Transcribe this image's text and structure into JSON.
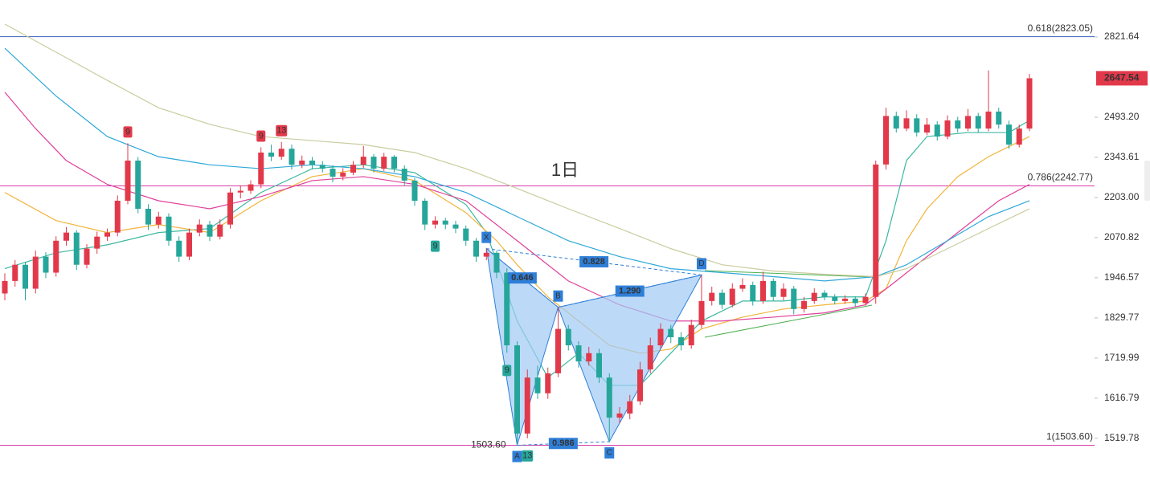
{
  "chart_data": {
    "type": "candlestick",
    "log_scale": true,
    "ylim": [
      1423,
      2987
    ],
    "yticks": [
      1519.78,
      1616.79,
      1719.99,
      1829.77,
      1946.57,
      2070.82,
      {
        "value": 2203,
        "label": "2203.00"
      },
      2343.61,
      {
        "value": 2493.2,
        "label": "2493.20"
      },
      2821.64
    ],
    "colors": {
      "up": "#e2394a",
      "down": "#26a69a"
    },
    "candles": [
      [
        1900,
        1960,
        1880,
        1937
      ],
      [
        1937,
        2000,
        1920,
        1986
      ],
      [
        1986,
        1995,
        1880,
        1914
      ],
      [
        1914,
        2030,
        1900,
        2011
      ],
      [
        2011,
        2025,
        1945,
        1962
      ],
      [
        1962,
        2075,
        1950,
        2061
      ],
      [
        2061,
        2105,
        2045,
        2087
      ],
      [
        2087,
        2095,
        1970,
        1986
      ],
      [
        1986,
        2050,
        1975,
        2036
      ],
      [
        2036,
        2090,
        2020,
        2074
      ],
      [
        2074,
        2100,
        2060,
        2087
      ],
      [
        2087,
        2210,
        2075,
        2192
      ],
      [
        2192,
        2395,
        2180,
        2332
      ],
      [
        2332,
        2345,
        2150,
        2165
      ],
      [
        2165,
        2180,
        2095,
        2113
      ],
      [
        2113,
        2155,
        2100,
        2139
      ],
      [
        2139,
        2150,
        2045,
        2061
      ],
      [
        2061,
        2075,
        1995,
        2011
      ],
      [
        2011,
        2100,
        2000,
        2087
      ],
      [
        2087,
        2130,
        2075,
        2113
      ],
      [
        2113,
        2125,
        2060,
        2074
      ],
      [
        2074,
        2130,
        2065,
        2113
      ],
      [
        2113,
        2235,
        2100,
        2220
      ],
      [
        2220,
        2245,
        2200,
        2226
      ],
      [
        2226,
        2262,
        2215,
        2248
      ],
      [
        2248,
        2380,
        2235,
        2361
      ],
      [
        2361,
        2390,
        2330,
        2346
      ],
      [
        2346,
        2400,
        2335,
        2375
      ],
      [
        2375,
        2390,
        2300,
        2317
      ],
      [
        2317,
        2350,
        2305,
        2332
      ],
      [
        2332,
        2345,
        2300,
        2317
      ],
      [
        2317,
        2330,
        2290,
        2303
      ],
      [
        2303,
        2315,
        2255,
        2275
      ],
      [
        2275,
        2305,
        2262,
        2289
      ],
      [
        2289,
        2330,
        2280,
        2317
      ],
      [
        2317,
        2385,
        2305,
        2346
      ],
      [
        2346,
        2355,
        2290,
        2303
      ],
      [
        2303,
        2360,
        2295,
        2346
      ],
      [
        2346,
        2352,
        2290,
        2303
      ],
      [
        2303,
        2315,
        2245,
        2261
      ],
      [
        2261,
        2270,
        2175,
        2192
      ],
      [
        2192,
        2200,
        2095,
        2113
      ],
      [
        2113,
        2140,
        2100,
        2126
      ],
      [
        2126,
        2135,
        2098,
        2113
      ],
      [
        2113,
        2125,
        2085,
        2100
      ],
      [
        2100,
        2110,
        2045,
        2061
      ],
      [
        2061,
        2070,
        1995,
        2011
      ],
      [
        2011,
        2036,
        2000,
        2023
      ],
      [
        2023,
        2030,
        1945,
        1962
      ],
      [
        1962,
        1975,
        1734,
        1754
      ],
      [
        1754,
        1765,
        1503.6,
        1531
      ],
      [
        1531,
        1690,
        1520,
        1669
      ],
      [
        1669,
        1700,
        1615,
        1629
      ],
      [
        1629,
        1695,
        1615,
        1680
      ],
      [
        1680,
        1860,
        1670,
        1799
      ],
      [
        1799,
        1810,
        1740,
        1754
      ],
      [
        1754,
        1765,
        1695,
        1711
      ],
      [
        1711,
        1750,
        1700,
        1733
      ],
      [
        1733,
        1745,
        1655,
        1669
      ],
      [
        1669,
        1680,
        1512,
        1569
      ],
      [
        1569,
        1595,
        1555,
        1579
      ],
      [
        1579,
        1625,
        1565,
        1609
      ],
      [
        1609,
        1710,
        1600,
        1690
      ],
      [
        1690,
        1775,
        1680,
        1754
      ],
      [
        1754,
        1815,
        1745,
        1799
      ],
      [
        1799,
        1810,
        1760,
        1776
      ],
      [
        1776,
        1790,
        1740,
        1754
      ],
      [
        1754,
        1825,
        1745,
        1810
      ],
      [
        1810,
        1955,
        1800,
        1878
      ],
      [
        1878,
        1920,
        1865,
        1902
      ],
      [
        1902,
        1912,
        1855,
        1867
      ],
      [
        1867,
        1930,
        1860,
        1914
      ],
      [
        1914,
        1945,
        1905,
        1925
      ],
      [
        1925,
        1935,
        1865,
        1878
      ],
      [
        1878,
        1965,
        1870,
        1937
      ],
      [
        1937,
        1945,
        1878,
        1890
      ],
      [
        1890,
        1930,
        1880,
        1914
      ],
      [
        1914,
        1922,
        1840,
        1855
      ],
      [
        1855,
        1890,
        1845,
        1878
      ],
      [
        1878,
        1915,
        1870,
        1902
      ],
      [
        1902,
        1910,
        1880,
        1890
      ],
      [
        1890,
        1898,
        1868,
        1878
      ],
      [
        1878,
        1895,
        1870,
        1885
      ],
      [
        1885,
        1892,
        1862,
        1872
      ],
      [
        1872,
        1900,
        1865,
        1890
      ],
      [
        1890,
        2332,
        1870,
        2318
      ],
      [
        2318,
        2530,
        2300,
        2498
      ],
      [
        2498,
        2515,
        2435,
        2450
      ],
      [
        2450,
        2520,
        2440,
        2489
      ],
      [
        2489,
        2505,
        2420,
        2435
      ],
      [
        2435,
        2490,
        2425,
        2465
      ],
      [
        2465,
        2478,
        2405,
        2420
      ],
      [
        2420,
        2500,
        2410,
        2481
      ],
      [
        2481,
        2495,
        2435,
        2450
      ],
      [
        2450,
        2525,
        2440,
        2498
      ],
      [
        2498,
        2510,
        2435,
        2450
      ],
      [
        2450,
        2680,
        2440,
        2515
      ],
      [
        2515,
        2530,
        2450,
        2465
      ],
      [
        2465,
        2480,
        2375,
        2390
      ],
      [
        2390,
        2465,
        2380,
        2450
      ],
      [
        2450,
        2665,
        2440,
        2647.54
      ]
    ],
    "moving_averages": [
      {
        "color": "#3cb8a0",
        "x": [
          0,
          5,
          10,
          15,
          20,
          25,
          30,
          35,
          40,
          45,
          47,
          50,
          53,
          56,
          59,
          62,
          65,
          68,
          72,
          76,
          80,
          84,
          86,
          88,
          90,
          94,
          98,
          100
        ],
        "values": [
          1974,
          2023,
          2048,
          2087,
          2100,
          2220,
          2303,
          2317,
          2289,
          2179,
          2087,
          1821,
          1669,
          1733,
          1649,
          1649,
          1733,
          1821,
          1878,
          1878,
          1890,
          1890,
          2061,
          2332,
          2420,
          2435,
          2435,
          2481
        ]
      },
      {
        "color": "#f2b43c",
        "x": [
          0,
          5,
          10,
          15,
          20,
          25,
          30,
          35,
          40,
          45,
          48,
          50,
          53,
          56,
          59,
          62,
          65,
          68,
          72,
          76,
          80,
          84,
          86,
          88,
          90,
          93,
          96,
          100
        ],
        "values": [
          2220,
          2126,
          2087,
          2113,
          2087,
          2192,
          2275,
          2303,
          2261,
          2152,
          2061,
          1986,
          1890,
          1821,
          1754,
          1733,
          1744,
          1799,
          1832,
          1855,
          1867,
          1878,
          1914,
          2061,
          2165,
          2275,
          2346,
          2420
        ]
      },
      {
        "color": "#e0409a",
        "x": [
          0,
          3,
          6,
          10,
          15,
          20,
          25,
          30,
          35,
          40,
          45,
          50,
          55,
          60,
          65,
          70,
          75,
          80,
          84,
          87,
          90,
          94,
          97,
          100
        ],
        "values": [
          2591,
          2450,
          2332,
          2248,
          2192,
          2165,
          2206,
          2261,
          2275,
          2248,
          2192,
          2061,
          1937,
          1867,
          1821,
          1821,
          1832,
          1844,
          1867,
          1937,
          2011,
          2113,
          2192,
          2248
        ]
      },
      {
        "color": "#2fa8d8",
        "x": [
          0,
          5,
          10,
          15,
          20,
          25,
          30,
          35,
          40,
          45,
          50,
          55,
          60,
          65,
          70,
          75,
          80,
          85,
          88,
          92,
          96,
          100
        ],
        "values": [
          2773,
          2576,
          2420,
          2346,
          2317,
          2303,
          2317,
          2303,
          2275,
          2220,
          2139,
          2061,
          2011,
          1974,
          1962,
          1950,
          1937,
          1950,
          1986,
          2061,
          2139,
          2192
        ]
      },
      {
        "color": "#c9cc9e",
        "x": [
          0,
          5,
          10,
          15,
          20,
          25,
          30,
          35,
          40,
          45,
          50,
          55,
          60,
          65,
          70,
          75,
          80,
          85,
          88,
          92,
          96,
          100
        ],
        "values": [
          2878,
          2756,
          2639,
          2530,
          2466,
          2420,
          2405,
          2390,
          2361,
          2303,
          2234,
          2165,
          2100,
          2036,
          1986,
          1967,
          1957,
          1950,
          1974,
          2036,
          2100,
          2165
        ]
      }
    ],
    "fib_levels": [
      {
        "label": "0.618(2823.05)",
        "value": 2823.05,
        "color": "#3d62b8"
      },
      {
        "label": "0.786(2242.77)",
        "value": 2242.77,
        "color": "#d63fa6"
      },
      {
        "label": "1(1503.60)",
        "value": 1503.6,
        "color": "#d63fa6"
      }
    ],
    "pattern": {
      "color": "#2f7fd8",
      "fill": "#9fcaf5",
      "points": [
        {
          "label": "X",
          "candle": 47,
          "value": 2036
        },
        {
          "label": "A",
          "candle": 50,
          "value": 1503.6,
          "price_label": "1503.60"
        },
        {
          "label": "B",
          "candle": 54,
          "value": 1860
        },
        {
          "label": "C",
          "candle": 59,
          "value": 1512
        },
        {
          "label": "D",
          "candle": 68,
          "value": 1955
        }
      ],
      "ratios": [
        0.646,
        0.828,
        {
          "value": 1.29,
          "label": "1.290"
        },
        0.986
      ]
    },
    "td_labels": [
      {
        "text": "9",
        "candle": 12,
        "color": "#e2394a"
      },
      {
        "text": "9",
        "candle": 25,
        "color": "#e2394a"
      },
      {
        "text": "13",
        "candle": 27,
        "color": "#e2394a"
      },
      {
        "text": "9",
        "candle": 42,
        "color": "#26a69a"
      },
      {
        "text": "9",
        "candle": 49,
        "color": "#26a69a"
      },
      {
        "text": "13",
        "candle": 51,
        "color": "#26a69a"
      }
    ],
    "annotation": {
      "text": "1日",
      "color": "#e5525a"
    }
  }
}
